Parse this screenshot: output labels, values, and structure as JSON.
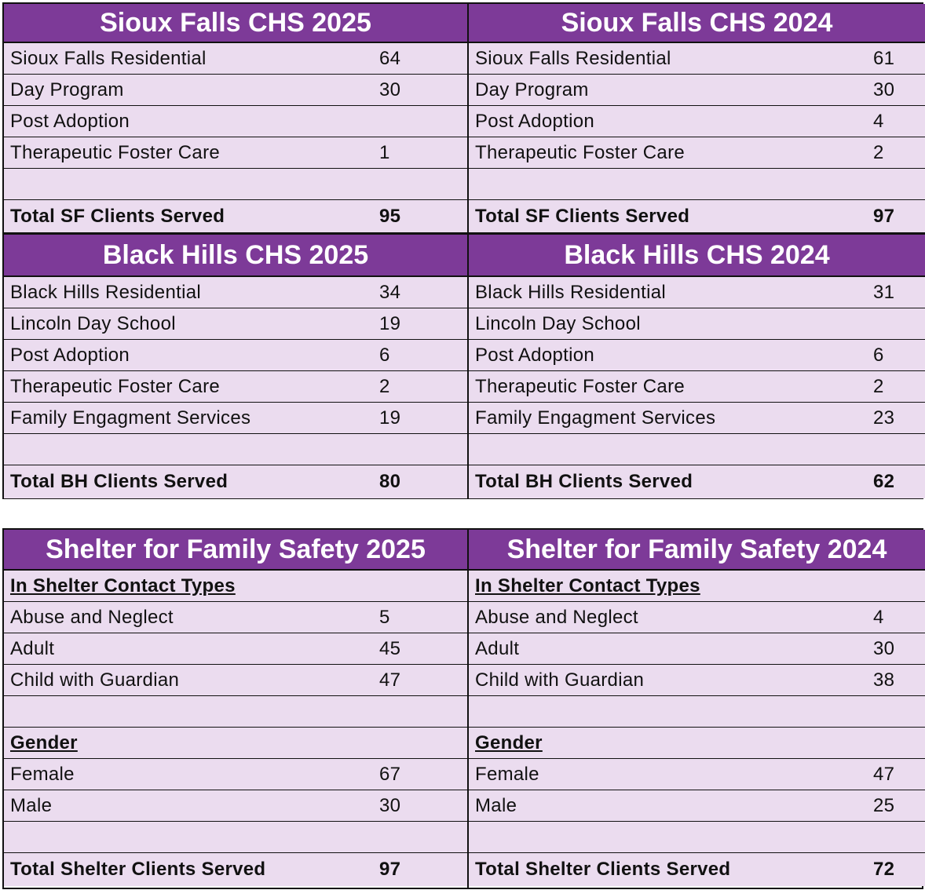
{
  "sf": {
    "y2025": {
      "title": "Sioux Falls CHS 2025",
      "rows": [
        {
          "label": "Sioux Falls Residential",
          "value": "64"
        },
        {
          "label": "Day Program",
          "value": "30"
        },
        {
          "label": "Post Adoption",
          "value": ""
        },
        {
          "label": "Therapeutic Foster Care",
          "value": "1"
        },
        {
          "label": "",
          "value": ""
        }
      ],
      "total_label": "Total SF Clients Served",
      "total_value": "95"
    },
    "y2024": {
      "title": "Sioux Falls CHS 2024",
      "rows": [
        {
          "label": "Sioux Falls Residential",
          "value": "61"
        },
        {
          "label": "Day Program",
          "value": "30"
        },
        {
          "label": "Post Adoption",
          "value": "4"
        },
        {
          "label": "Therapeutic Foster Care",
          "value": "2"
        },
        {
          "label": "",
          "value": ""
        }
      ],
      "total_label": "Total SF Clients Served",
      "total_value": "97"
    }
  },
  "bh": {
    "y2025": {
      "title": "Black Hills CHS 2025",
      "rows": [
        {
          "label": "Black Hills Residential",
          "value": "34"
        },
        {
          "label": "Lincoln Day School",
          "value": "19"
        },
        {
          "label": "Post Adoption",
          "value": "6"
        },
        {
          "label": "Therapeutic Foster Care",
          "value": "2"
        },
        {
          "label": "Family Engagment Services",
          "value": "19"
        },
        {
          "label": "",
          "value": ""
        }
      ],
      "total_label": "Total BH Clients Served",
      "total_value": "80"
    },
    "y2024": {
      "title": "Black Hills CHS 2024",
      "rows": [
        {
          "label": "Black Hills Residential",
          "value": "31"
        },
        {
          "label": "Lincoln Day School",
          "value": ""
        },
        {
          "label": "Post Adoption",
          "value": "6"
        },
        {
          "label": "Therapeutic Foster Care",
          "value": "2"
        },
        {
          "label": "Family Engagment Services",
          "value": "23"
        },
        {
          "label": "",
          "value": ""
        }
      ],
      "total_label": "Total BH Clients Served",
      "total_value": "62"
    }
  },
  "shelter": {
    "y2025": {
      "title": "Shelter for Family Safety 2025",
      "contact_heading": "In Shelter Contact Types",
      "contact_rows": [
        {
          "label": "Abuse and Neglect",
          "value": "5"
        },
        {
          "label": "Adult",
          "value": "45"
        },
        {
          "label": "Child with Guardian",
          "value": "47"
        }
      ],
      "gender_heading": "Gender",
      "gender_rows": [
        {
          "label": "Female",
          "value": "67"
        },
        {
          "label": "Male",
          "value": "30"
        }
      ],
      "total_label": "Total Shelter Clients Served",
      "total_value": "97"
    },
    "y2024": {
      "title": "Shelter for Family Safety 2024",
      "contact_heading": "In Shelter Contact Types",
      "contact_rows": [
        {
          "label": "Abuse and Neglect",
          "value": "4"
        },
        {
          "label": "Adult",
          "value": "30"
        },
        {
          "label": "Child with Guardian",
          "value": "38"
        }
      ],
      "gender_heading": "Gender",
      "gender_rows": [
        {
          "label": "Female",
          "value": "47"
        },
        {
          "label": "Male",
          "value": "25"
        }
      ],
      "total_label": "Total Shelter Clients Served",
      "total_value": "72"
    }
  },
  "colors": {
    "header_bg": "#7d3a98",
    "header_text": "#ffffff",
    "row_bg": "#ebdcef",
    "border": "#111111"
  }
}
